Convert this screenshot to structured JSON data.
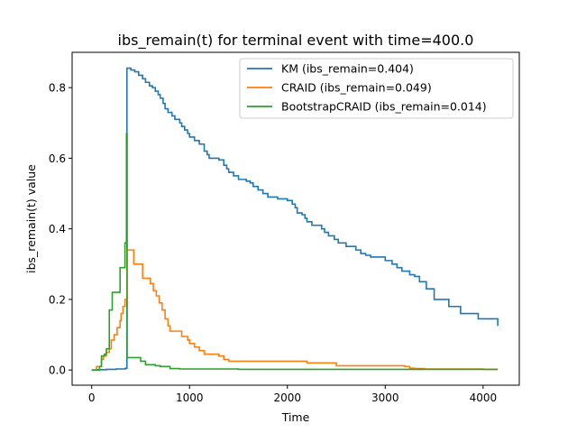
{
  "chart_data": {
    "type": "line",
    "title": "ibs_remain(t) for terminal event with time=400.0",
    "xlabel": "Time",
    "ylabel": "ibs_remain(t) value",
    "xlim": [
      -200,
      4370
    ],
    "ylim": [
      -0.043,
      0.9
    ],
    "xticks": [
      0,
      1000,
      2000,
      3000,
      4000
    ],
    "yticks": [
      0.0,
      0.2,
      0.4,
      0.6,
      0.8
    ],
    "xtick_labels": [
      "0",
      "1000",
      "2000",
      "3000",
      "4000"
    ],
    "ytick_labels": [
      "0.0",
      "0.2",
      "0.4",
      "0.6",
      "0.8"
    ],
    "grid": false,
    "legend_position": "top-right",
    "series": [
      {
        "name": "KM (ibs_remain=0.404)",
        "color": "#1f77b4",
        "step": true,
        "points": [
          [
            0,
            0
          ],
          [
            50,
            0.001
          ],
          [
            150,
            0.002
          ],
          [
            250,
            0.003
          ],
          [
            340,
            0.004
          ],
          [
            350,
            0.005
          ],
          [
            360,
            0.855
          ],
          [
            400,
            0.85
          ],
          [
            440,
            0.845
          ],
          [
            480,
            0.835
          ],
          [
            520,
            0.825
          ],
          [
            550,
            0.815
          ],
          [
            590,
            0.805
          ],
          [
            620,
            0.8
          ],
          [
            650,
            0.79
          ],
          [
            680,
            0.78
          ],
          [
            700,
            0.77
          ],
          [
            730,
            0.755
          ],
          [
            750,
            0.74
          ],
          [
            780,
            0.73
          ],
          [
            820,
            0.72
          ],
          [
            850,
            0.71
          ],
          [
            900,
            0.7
          ],
          [
            920,
            0.69
          ],
          [
            950,
            0.68
          ],
          [
            980,
            0.67
          ],
          [
            1000,
            0.66
          ],
          [
            1050,
            0.65
          ],
          [
            1100,
            0.64
          ],
          [
            1150,
            0.62
          ],
          [
            1180,
            0.61
          ],
          [
            1200,
            0.6
          ],
          [
            1300,
            0.595
          ],
          [
            1350,
            0.58
          ],
          [
            1380,
            0.57
          ],
          [
            1400,
            0.56
          ],
          [
            1450,
            0.55
          ],
          [
            1500,
            0.54
          ],
          [
            1580,
            0.535
          ],
          [
            1620,
            0.53
          ],
          [
            1650,
            0.52
          ],
          [
            1700,
            0.51
          ],
          [
            1750,
            0.5
          ],
          [
            1800,
            0.49
          ],
          [
            1900,
            0.485
          ],
          [
            2000,
            0.48
          ],
          [
            2050,
            0.47
          ],
          [
            2080,
            0.46
          ],
          [
            2100,
            0.445
          ],
          [
            2150,
            0.44
          ],
          [
            2180,
            0.43
          ],
          [
            2200,
            0.42
          ],
          [
            2250,
            0.41
          ],
          [
            2350,
            0.4
          ],
          [
            2380,
            0.39
          ],
          [
            2420,
            0.38
          ],
          [
            2480,
            0.37
          ],
          [
            2520,
            0.36
          ],
          [
            2600,
            0.35
          ],
          [
            2700,
            0.34
          ],
          [
            2750,
            0.33
          ],
          [
            2800,
            0.325
          ],
          [
            2850,
            0.32
          ],
          [
            3000,
            0.31
          ],
          [
            3070,
            0.3
          ],
          [
            3120,
            0.29
          ],
          [
            3170,
            0.28
          ],
          [
            3250,
            0.27
          ],
          [
            3300,
            0.265
          ],
          [
            3350,
            0.25
          ],
          [
            3420,
            0.23
          ],
          [
            3500,
            0.2
          ],
          [
            3650,
            0.18
          ],
          [
            3770,
            0.16
          ],
          [
            3950,
            0.145
          ],
          [
            4070,
            0.145
          ],
          [
            4150,
            0.13
          ],
          [
            4150,
            0.125
          ]
        ]
      },
      {
        "name": "CRAID (ibs_remain=0.049)",
        "color": "#ff7f0e",
        "step": true,
        "points": [
          [
            0,
            0
          ],
          [
            50,
            0.01
          ],
          [
            100,
            0.03
          ],
          [
            120,
            0.04
          ],
          [
            150,
            0.05
          ],
          [
            180,
            0.06
          ],
          [
            200,
            0.085
          ],
          [
            230,
            0.1
          ],
          [
            260,
            0.12
          ],
          [
            290,
            0.14
          ],
          [
            300,
            0.16
          ],
          [
            320,
            0.18
          ],
          [
            340,
            0.2
          ],
          [
            360,
            0.34
          ],
          [
            420,
            0.34
          ],
          [
            430,
            0.3
          ],
          [
            500,
            0.3
          ],
          [
            520,
            0.26
          ],
          [
            560,
            0.26
          ],
          [
            600,
            0.245
          ],
          [
            630,
            0.225
          ],
          [
            660,
            0.21
          ],
          [
            690,
            0.19
          ],
          [
            720,
            0.17
          ],
          [
            750,
            0.145
          ],
          [
            780,
            0.125
          ],
          [
            800,
            0.11
          ],
          [
            880,
            0.11
          ],
          [
            920,
            0.095
          ],
          [
            980,
            0.085
          ],
          [
            1000,
            0.075
          ],
          [
            1050,
            0.065
          ],
          [
            1100,
            0.055
          ],
          [
            1150,
            0.045
          ],
          [
            1300,
            0.04
          ],
          [
            1350,
            0.03
          ],
          [
            1400,
            0.025
          ],
          [
            2000,
            0.025
          ],
          [
            2200,
            0.02
          ],
          [
            2500,
            0.012
          ],
          [
            3200,
            0.01
          ],
          [
            3250,
            0.005
          ],
          [
            3300,
            0.004
          ],
          [
            3400,
            0.003
          ],
          [
            4000,
            0.002
          ],
          [
            4150,
            0.002
          ]
        ]
      },
      {
        "name": "BootstrapCRAID (ibs_remain=0.014)",
        "color": "#2ca02c",
        "step": true,
        "points": [
          [
            0,
            0
          ],
          [
            80,
            0.01
          ],
          [
            100,
            0.04
          ],
          [
            130,
            0.045
          ],
          [
            150,
            0.06
          ],
          [
            180,
            0.17
          ],
          [
            210,
            0.22
          ],
          [
            260,
            0.22
          ],
          [
            290,
            0.29
          ],
          [
            330,
            0.29
          ],
          [
            340,
            0.36
          ],
          [
            350,
            0.36
          ],
          [
            355,
            0.67
          ],
          [
            362,
            0.035
          ],
          [
            460,
            0.035
          ],
          [
            500,
            0.025
          ],
          [
            550,
            0.015
          ],
          [
            650,
            0.012
          ],
          [
            700,
            0.01
          ],
          [
            800,
            0.004
          ],
          [
            900,
            0.003
          ],
          [
            1500,
            0.002
          ],
          [
            4150,
            0.002
          ]
        ]
      }
    ]
  }
}
